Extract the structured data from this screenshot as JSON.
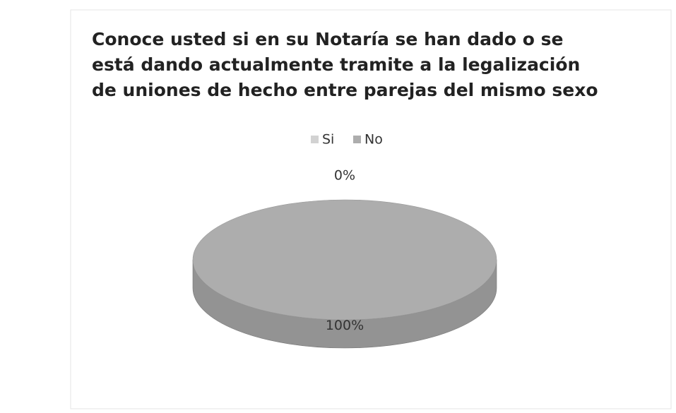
{
  "chart_data": {
    "type": "pie3d",
    "title": "Conoce usted si en su Notaría se han dado o se está dando actualmente tramite a la legalización de uniones de hecho entre parejas del mismo sexo",
    "categories": [
      "Si",
      "No"
    ],
    "values": [
      0,
      100
    ],
    "value_labels": [
      "0%",
      "100%"
    ],
    "colors": [
      "#d2d2d2",
      "#adadad"
    ],
    "legend": "top"
  }
}
